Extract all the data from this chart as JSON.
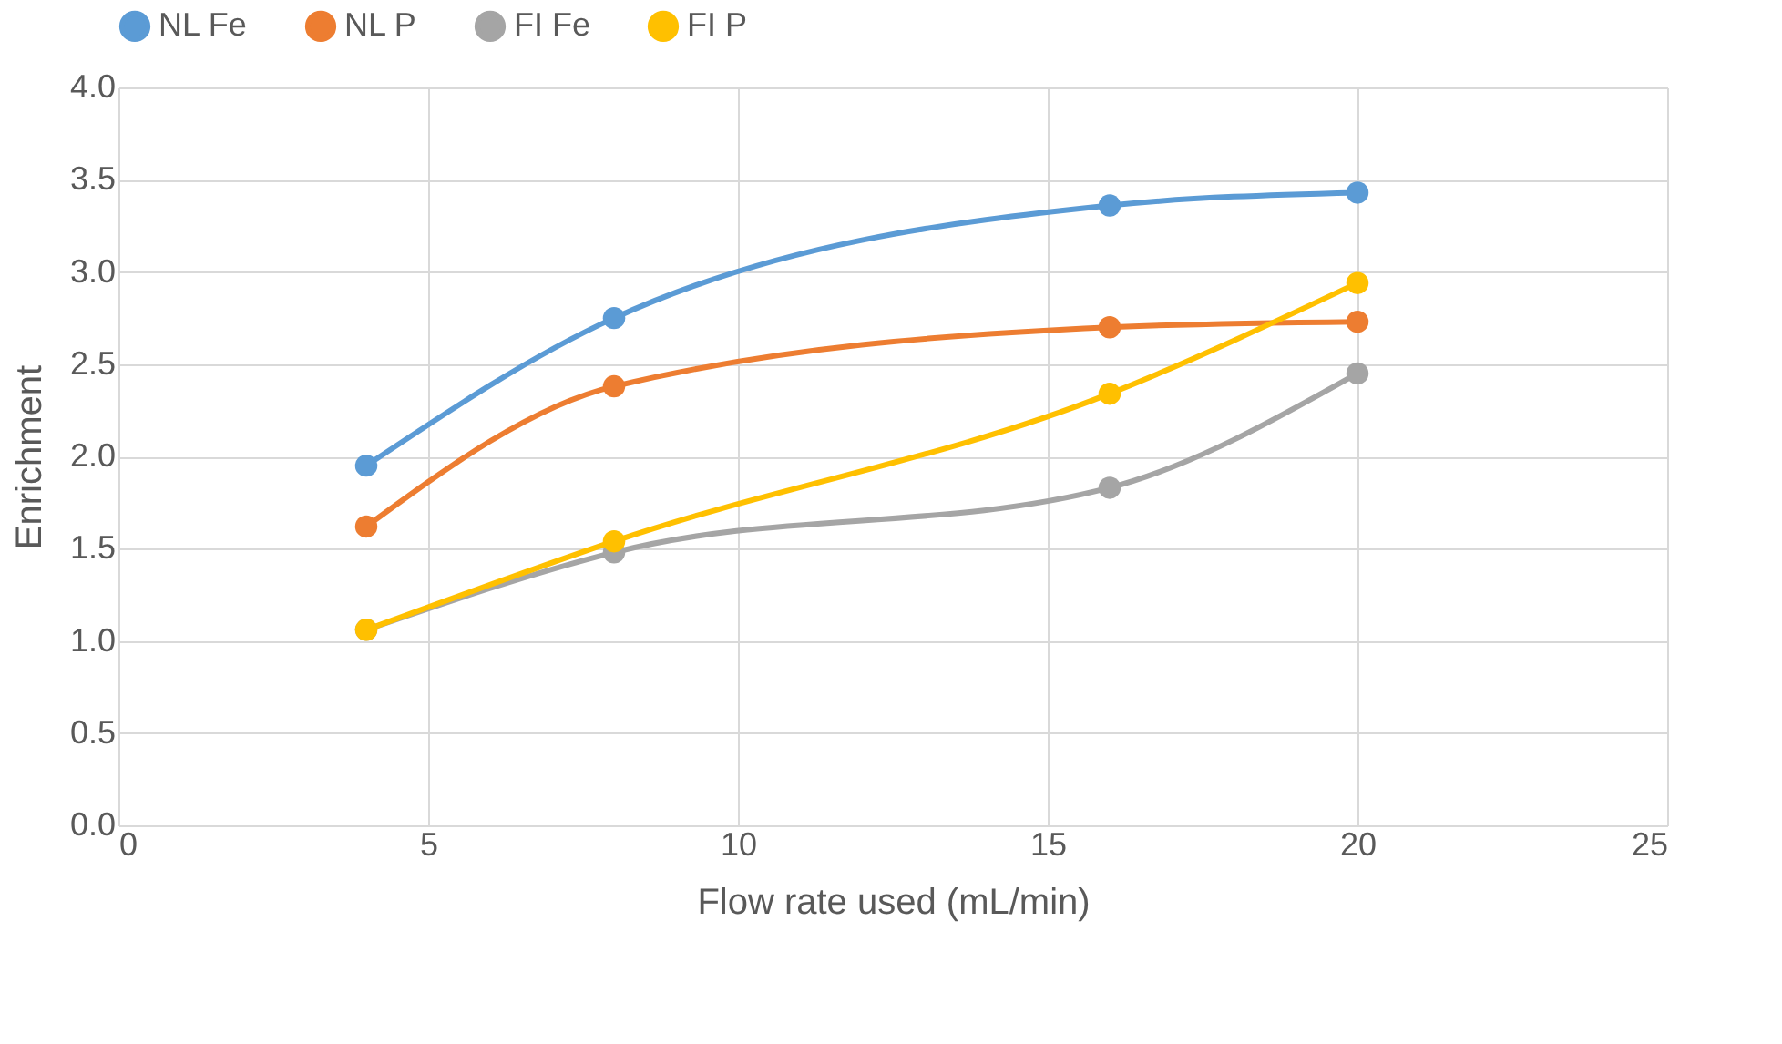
{
  "chart_data": {
    "type": "line",
    "xlabel": "Flow rate used (mL/min)",
    "ylabel": "Enrichment",
    "x": [
      4,
      8,
      16,
      20
    ],
    "series": [
      {
        "name": "NL Fe",
        "color": "#5b9bd5",
        "values": [
          1.95,
          2.75,
          3.36,
          3.43
        ]
      },
      {
        "name": "NL P",
        "color": "#ed7d31",
        "values": [
          1.62,
          2.38,
          2.7,
          2.73
        ]
      },
      {
        "name": "FI Fe",
        "color": "#a5a5a5",
        "values": [
          1.06,
          1.48,
          1.83,
          2.45
        ]
      },
      {
        "name": "FI P",
        "color": "#ffc000",
        "values": [
          1.06,
          1.54,
          2.34,
          2.94
        ]
      }
    ],
    "xlim": [
      0,
      25
    ],
    "xticks": [
      0,
      5,
      10,
      15,
      20,
      25
    ],
    "ylim": [
      0,
      4
    ],
    "yticks": [
      {
        "value": 0,
        "label": "0.0"
      },
      {
        "value": 0.5,
        "label": "0.5"
      },
      {
        "value": 1,
        "label": "1.0"
      },
      {
        "value": 1.5,
        "label": "1.5"
      },
      {
        "value": 2,
        "label": "2.0"
      },
      {
        "value": 2.5,
        "label": "2.5"
      },
      {
        "value": 3,
        "label": "3.0"
      },
      {
        "value": 3.5,
        "label": "3.5"
      },
      {
        "value": 4,
        "label": "4.0"
      }
    ],
    "grid": true,
    "legend": "top",
    "marker": "circle"
  }
}
